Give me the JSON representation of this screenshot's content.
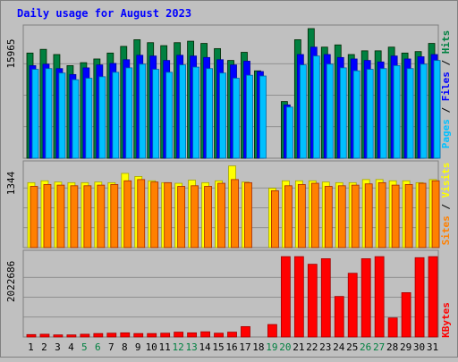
{
  "chart_data": [
    {
      "type": "bar",
      "title": "Daily usage for August 2023",
      "ylabel": "Pages / Files / Hits",
      "y_max_label": "15965",
      "series": [
        {
          "name": "Hits",
          "color": "#008040",
          "values": [
            14200,
            14700,
            14000,
            12500,
            12900,
            13400,
            14200,
            15100,
            16000,
            15600,
            15200,
            15600,
            15800,
            15500,
            14800,
            13200,
            14300,
            11800,
            null,
            7650,
            16000,
            17500,
            15000,
            15300,
            14000,
            14500,
            14500,
            15000,
            14200,
            14400,
            15500
          ]
        },
        {
          "name": "Files",
          "color": "#0000ff",
          "values": [
            12500,
            12700,
            12100,
            11300,
            12200,
            12600,
            12800,
            13300,
            13900,
            13800,
            13200,
            13900,
            13800,
            13600,
            13300,
            12600,
            13100,
            11700,
            null,
            7200,
            14000,
            15000,
            14000,
            13600,
            13400,
            13200,
            13000,
            13800,
            13400,
            13700,
            14000
          ]
        },
        {
          "name": "Pages",
          "color": "#00c0ff",
          "values": [
            12000,
            12100,
            11500,
            10600,
            10800,
            11000,
            11600,
            12200,
            12700,
            12000,
            11600,
            12600,
            12300,
            12100,
            11500,
            10800,
            11200,
            11100,
            null,
            6900,
            12600,
            13800,
            12700,
            12200,
            11800,
            12000,
            12100,
            12500,
            12100,
            12700,
            13200
          ]
        }
      ],
      "categories": [
        "1",
        "2",
        "3",
        "4",
        "5",
        "6",
        "7",
        "8",
        "9",
        "10",
        "11",
        "12",
        "13",
        "14",
        "15",
        "16",
        "17",
        "18",
        "19",
        "20",
        "21",
        "22",
        "23",
        "24",
        "25",
        "26",
        "27",
        "28",
        "29",
        "30",
        "31"
      ],
      "weekend_days": [
        "5",
        "6",
        "12",
        "13",
        "19",
        "20",
        "26",
        "27"
      ]
    },
    {
      "type": "bar",
      "ylabel": "Sites / Visits",
      "y_max_label": "1344",
      "series": [
        {
          "name": "Visits",
          "color": "#ffff00",
          "values": [
            1050,
            1080,
            1060,
            1050,
            1050,
            1060,
            1050,
            1200,
            1150,
            1080,
            1050,
            1040,
            1090,
            1050,
            1080,
            1320,
            1060,
            null,
            960,
            1080,
            1080,
            1080,
            1060,
            1050,
            1050,
            1100,
            1100,
            1080,
            1080,
            1050,
            1100
          ]
        },
        {
          "name": "Sites",
          "color": "#ff8000",
          "values": [
            990,
            1020,
            1010,
            1000,
            1000,
            1010,
            1020,
            1080,
            1100,
            1060,
            1050,
            990,
            1000,
            990,
            1040,
            1100,
            1050,
            null,
            920,
            1000,
            1020,
            1040,
            990,
            1000,
            1010,
            1030,
            1050,
            1010,
            1020,
            1040,
            1080
          ]
        }
      ],
      "categories": [
        "1",
        "2",
        "3",
        "4",
        "5",
        "6",
        "7",
        "8",
        "9",
        "10",
        "11",
        "12",
        "13",
        "14",
        "15",
        "16",
        "17",
        "18",
        "19",
        "20",
        "21",
        "22",
        "23",
        "24",
        "25",
        "26",
        "27",
        "28",
        "29",
        "30",
        "31"
      ]
    },
    {
      "type": "bar",
      "ylabel": "KBytes",
      "y_max_label": "2022686",
      "series": [
        {
          "name": "KBytes",
          "color": "#ff0000",
          "values": [
            70000,
            80000,
            60000,
            60000,
            80000,
            100000,
            110000,
            120000,
            100000,
            100000,
            110000,
            140000,
            120000,
            150000,
            110000,
            140000,
            300000,
            null,
            360000,
            2320000,
            2320000,
            2100000,
            2260000,
            1170000,
            1840000,
            2260000,
            2320000,
            550000,
            1280000,
            2290000,
            2320000
          ]
        }
      ],
      "categories": [
        "1",
        "2",
        "3",
        "4",
        "5",
        "6",
        "7",
        "8",
        "9",
        "10",
        "11",
        "12",
        "13",
        "14",
        "15",
        "16",
        "17",
        "18",
        "19",
        "20",
        "21",
        "22",
        "23",
        "24",
        "25",
        "26",
        "27",
        "28",
        "29",
        "30",
        "31"
      ]
    }
  ]
}
